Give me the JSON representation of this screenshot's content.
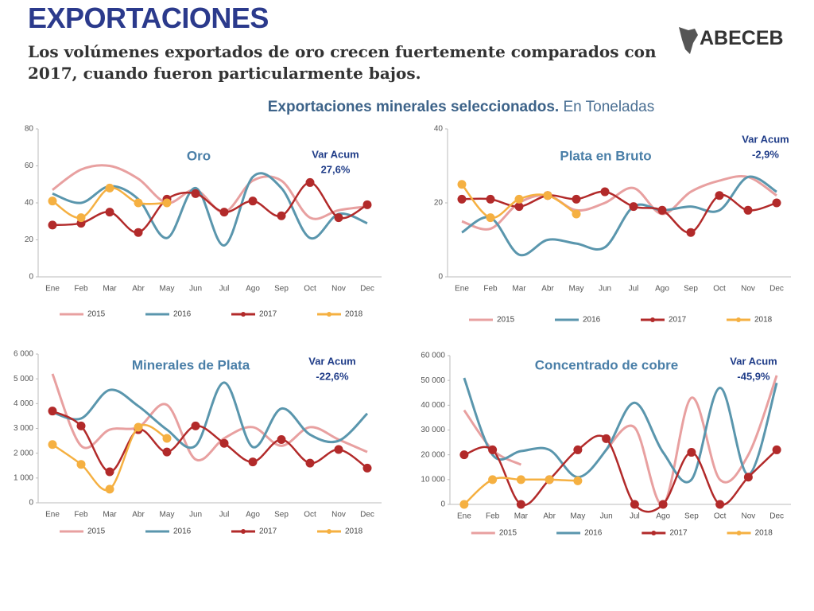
{
  "header": {
    "title": "EXPORTACIONES",
    "subtitle": "Los volúmenes exportados de oro crecen fuertemente comparados con 2017, cuando fueron particularmente bajos.",
    "logo": "ABECEB"
  },
  "section": {
    "title": "Exportaciones minerales seleccionados.",
    "unit": " En Toneladas"
  },
  "chart_data": [
    {
      "type": "line",
      "title": "Oro",
      "annotation_title": "Var Acum",
      "annotation_value": "27,6%",
      "categories": [
        "Ene",
        "Feb",
        "Mar",
        "Abr",
        "May",
        "Jun",
        "Jul",
        "Ago",
        "Sep",
        "Oct",
        "Nov",
        "Dec"
      ],
      "ylim": [
        0,
        80
      ],
      "yticks": [
        0,
        20,
        40,
        60,
        80
      ],
      "series": [
        {
          "name": "2015",
          "color": "#e8a0a0",
          "values": [
            47,
            58,
            60,
            53,
            40,
            47,
            35,
            52,
            52,
            32,
            36,
            38
          ]
        },
        {
          "name": "2016",
          "color": "#5a96ad",
          "values": [
            45,
            40,
            49,
            42,
            21,
            48,
            17,
            54,
            48,
            21,
            34,
            29
          ]
        },
        {
          "name": "2017",
          "color": "#b22a2a",
          "values": [
            28,
            29,
            35,
            24,
            42,
            45,
            35,
            41,
            33,
            51,
            32,
            39
          ]
        },
        {
          "name": "2018",
          "color": "#f5b041",
          "values": [
            41,
            32,
            48,
            40,
            40,
            null,
            null,
            null,
            null,
            null,
            null,
            null
          ]
        }
      ]
    },
    {
      "type": "line",
      "title": "Plata en Bruto",
      "annotation_title": "Var Acum",
      "annotation_value": "-2,9%",
      "categories": [
        "Ene",
        "Feb",
        "Mar",
        "Abr",
        "May",
        "Jun",
        "Jul",
        "Ago",
        "Sep",
        "Oct",
        "Nov",
        "Dec"
      ],
      "ylim": [
        0,
        40
      ],
      "yticks": [
        0,
        20,
        40
      ],
      "series": [
        {
          "name": "2015",
          "color": "#e8a0a0",
          "values": [
            15,
            13,
            20,
            22,
            18,
            20,
            24,
            17,
            23,
            26,
            27,
            22
          ]
        },
        {
          "name": "2016",
          "color": "#5a96ad",
          "values": [
            12,
            16,
            6,
            10,
            9,
            8,
            19,
            18,
            19,
            18,
            27,
            23
          ]
        },
        {
          "name": "2017",
          "color": "#b22a2a",
          "values": [
            21,
            21,
            19,
            22,
            21,
            23,
            19,
            18,
            12,
            22,
            18,
            20
          ]
        },
        {
          "name": "2018",
          "color": "#f5b041",
          "values": [
            25,
            16,
            21,
            22,
            17,
            null,
            null,
            null,
            null,
            null,
            null,
            null
          ]
        }
      ]
    },
    {
      "type": "line",
      "title": "Minerales de Plata",
      "annotation_title": "Var Acum",
      "annotation_value": "-22,6%",
      "categories": [
        "Ene",
        "Feb",
        "Mar",
        "Abr",
        "May",
        "Jun",
        "Jul",
        "Ago",
        "Sep",
        "Oct",
        "Nov",
        "Dec"
      ],
      "ylim": [
        0,
        6000
      ],
      "yticks": [
        0,
        {
          "value": 1000,
          "label": "1 000"
        },
        {
          "value": 2000,
          "label": "2 000"
        },
        {
          "value": 3000,
          "label": "3 000"
        },
        {
          "value": 4000,
          "label": "4 000"
        },
        {
          "value": 5000,
          "label": "5 000"
        },
        {
          "value": 6000,
          "label": "6 000"
        }
      ],
      "series": [
        {
          "name": "2015",
          "color": "#e8a0a0",
          "values": [
            5200,
            2300,
            2950,
            3050,
            3950,
            1750,
            2600,
            3050,
            2300,
            3050,
            2550,
            2050
          ]
        },
        {
          "name": "2016",
          "color": "#5a96ad",
          "values": [
            3650,
            3400,
            4550,
            3900,
            2950,
            2300,
            4850,
            2250,
            3800,
            2750,
            2500,
            3600
          ]
        },
        {
          "name": "2017",
          "color": "#b22a2a",
          "values": [
            3700,
            3100,
            1250,
            2950,
            2050,
            3100,
            2400,
            1650,
            2550,
            1600,
            2150,
            1400
          ]
        },
        {
          "name": "2018",
          "color": "#f5b041",
          "values": [
            2350,
            1550,
            550,
            3050,
            2600,
            null,
            null,
            null,
            null,
            null,
            null,
            null
          ]
        }
      ]
    },
    {
      "type": "line",
      "title": "Concentrado de cobre",
      "annotation_title": "Var Acum",
      "annotation_value": "-45,9%",
      "categories": [
        "Ene",
        "Feb",
        "Mar",
        "Abr",
        "May",
        "Jun",
        "Jul",
        "Ago",
        "Sep",
        "Oct",
        "Nov",
        "Dec"
      ],
      "ylim": [
        0,
        60000
      ],
      "yticks": [
        0,
        {
          "value": 10000,
          "label": "10 000"
        },
        {
          "value": 20000,
          "label": "20 000"
        },
        {
          "value": 30000,
          "label": "30 000"
        },
        {
          "value": 40000,
          "label": "40 000"
        },
        {
          "value": 50000,
          "label": "50 000"
        },
        {
          "value": 60000,
          "label": "60 000"
        }
      ],
      "series": [
        {
          "name": "2015",
          "color": "#e8a0a0",
          "values": [
            38000,
            22000,
            16000,
            null,
            null,
            22000,
            31000,
            0,
            43000,
            10000,
            20000,
            52000
          ]
        },
        {
          "name": "2016",
          "color": "#5a96ad",
          "values": [
            51000,
            20000,
            21500,
            22000,
            11000,
            22000,
            41000,
            21000,
            10000,
            47000,
            12000,
            49000
          ]
        },
        {
          "name": "2017",
          "color": "#b22a2a",
          "values": [
            20000,
            22000,
            0,
            10000,
            22000,
            26500,
            0,
            0,
            21000,
            0,
            11000,
            22000
          ]
        },
        {
          "name": "2018",
          "color": "#f5b041",
          "values": [
            0,
            10000,
            10000,
            10000,
            9500,
            null,
            null,
            null,
            null,
            null,
            null,
            null
          ]
        }
      ]
    }
  ]
}
